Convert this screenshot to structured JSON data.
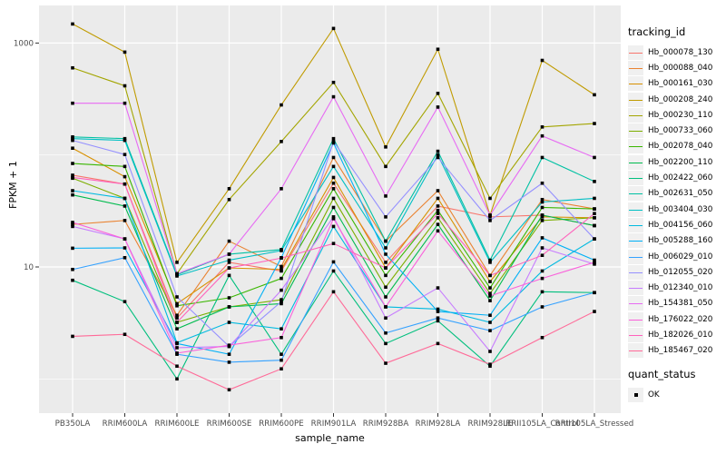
{
  "colors": {
    "panel_background": "#EBEBEB",
    "gridline": "#FFFFFF",
    "tick_mark": "#333333",
    "tick_label": "#4D4D4D",
    "point": "#000000",
    "legend_key_background": "#F0F0F0"
  },
  "legend": {
    "tracking_title": "tracking_id",
    "quant_title": "quant_status",
    "quant_items": [
      {
        "label": "OK",
        "marker": "black-square"
      }
    ]
  },
  "chart_data": {
    "type": "line",
    "title": "",
    "xlabel": "sample_name",
    "ylabel": "FPKM + 1",
    "y_scale": "log10",
    "ylim": [
      0.5,
      2200
    ],
    "y_major_ticks": [
      {
        "label": "1000",
        "value": 1000
      },
      {
        "label": "10",
        "value": 10
      }
    ],
    "y_minor_gridlines": [
      100,
      1
    ],
    "grid": "on",
    "legend_position": "right",
    "categories": [
      "PB350LA",
      "RRIM600LA",
      "RRIM600LE",
      "RRIM600SE",
      "RRIM600PE",
      "RRIM901LA",
      "RRIM928BA",
      "RRIM928LA",
      "RRIM928LE",
      "RRII105LA_Control",
      "RRII105LA_Stressed"
    ],
    "series": [
      {
        "name": "Hb_000078_130",
        "color": "#F8766D",
        "values": [
          66,
          55,
          3.5,
          11,
          9.2,
          56,
          11,
          35,
          28,
          29,
          23.4
        ]
      },
      {
        "name": "Hb_000088_040",
        "color": "#EA8331",
        "values": [
          24,
          26,
          3.7,
          17,
          10.1,
          95,
          17,
          48,
          8.4,
          40,
          33
        ]
      },
      {
        "name": "Hb_000161_030",
        "color": "#D89000",
        "values": [
          115,
          64,
          4.7,
          9.8,
          9.5,
          63,
          9.8,
          41,
          7.4,
          28,
          27.5
        ]
      },
      {
        "name": "Hb_000208_240",
        "color": "#C09B00",
        "values": [
          1480,
          830,
          11,
          50,
          280,
          1350,
          118,
          880,
          29,
          700,
          345
        ]
      },
      {
        "name": "Hb_000230_110",
        "color": "#A3A500",
        "values": [
          600,
          415,
          8.7,
          40,
          132,
          445,
          79,
          355,
          41,
          178,
          191
        ]
      },
      {
        "name": "Hb_000733_060",
        "color": "#7CAE00",
        "values": [
          62,
          41,
          3.2,
          4.4,
          5.1,
          41,
          6.6,
          27.5,
          5.8,
          26,
          27.5
        ]
      },
      {
        "name": "Hb_002078_040",
        "color": "#39B600",
        "values": [
          84,
          79,
          4.5,
          5.3,
          7.9,
          50,
          8.4,
          32,
          6.5,
          34,
          33
        ]
      },
      {
        "name": "Hb_002200_110",
        "color": "#00BB4E",
        "values": [
          44,
          35,
          2.8,
          4.4,
          4.7,
          34,
          5.4,
          24,
          5.0,
          29,
          23.4
        ]
      },
      {
        "name": "Hb_002422_060",
        "color": "#00BF7D",
        "values": [
          7.6,
          4.9,
          1.0,
          8.4,
          1.66,
          9.2,
          2.07,
          3.3,
          1.3,
          6.0,
          5.9
        ]
      },
      {
        "name": "Hb_002631_050",
        "color": "#00C1A3",
        "values": [
          145,
          140,
          8.5,
          13,
          14.3,
          140,
          17,
          108,
          11.5,
          95,
          58
        ]
      },
      {
        "name": "Hb_003404_030",
        "color": "#00BFC4",
        "values": [
          140,
          135,
          8.3,
          11.5,
          14,
          79,
          14.8,
          100,
          11,
          38,
          41
        ]
      },
      {
        "name": "Hb_004156_060",
        "color": "#00BAE0",
        "values": [
          48,
          41,
          2.1,
          3.2,
          2.8,
          23,
          4.4,
          4.2,
          3.2,
          9.2,
          17.8
        ]
      },
      {
        "name": "Hb_005288_160",
        "color": "#00B0F6",
        "values": [
          14.7,
          14.8,
          2.07,
          1.66,
          12.1,
          128,
          13,
          4.0,
          3.7,
          18.2,
          11.5
        ]
      },
      {
        "name": "Hb_006029_010",
        "color": "#35A2FF",
        "values": [
          9.5,
          12.1,
          1.66,
          1.41,
          1.47,
          11.1,
          2.57,
          3.5,
          2.7,
          4.4,
          5.9
        ]
      },
      {
        "name": "Hb_012055_020",
        "color": "#9590FF",
        "values": [
          135,
          101,
          5.4,
          1.95,
          4.9,
          132,
          28,
          95,
          26,
          56,
          17.8
        ]
      },
      {
        "name": "Hb_012340_010",
        "color": "#C77CFF",
        "values": [
          23,
          17.8,
          1.9,
          1.95,
          6.2,
          28,
          3.5,
          6.5,
          1.76,
          14.8,
          10.6
        ]
      },
      {
        "name": "Hb_154381_050",
        "color": "#E76BF3",
        "values": [
          290,
          290,
          8.7,
          13,
          50,
          331,
          43,
          268,
          29,
          148,
          95
        ]
      },
      {
        "name": "Hb_176022_020",
        "color": "#FA62DB",
        "values": [
          25,
          17.8,
          1.7,
          2.0,
          2.34,
          27,
          4.4,
          21,
          5.5,
          7.9,
          11
        ]
      },
      {
        "name": "Hb_182026_010",
        "color": "#FF62BC",
        "values": [
          63,
          55,
          3.2,
          9.8,
          12,
          16.2,
          9.8,
          30,
          8.4,
          12.7,
          30
        ]
      },
      {
        "name": "Hb_185467_020",
        "color": "#FF6A98",
        "values": [
          2.4,
          2.5,
          1.3,
          0.8,
          1.23,
          6.0,
          1.38,
          2.07,
          1.35,
          2.34,
          4.0
        ]
      }
    ]
  }
}
